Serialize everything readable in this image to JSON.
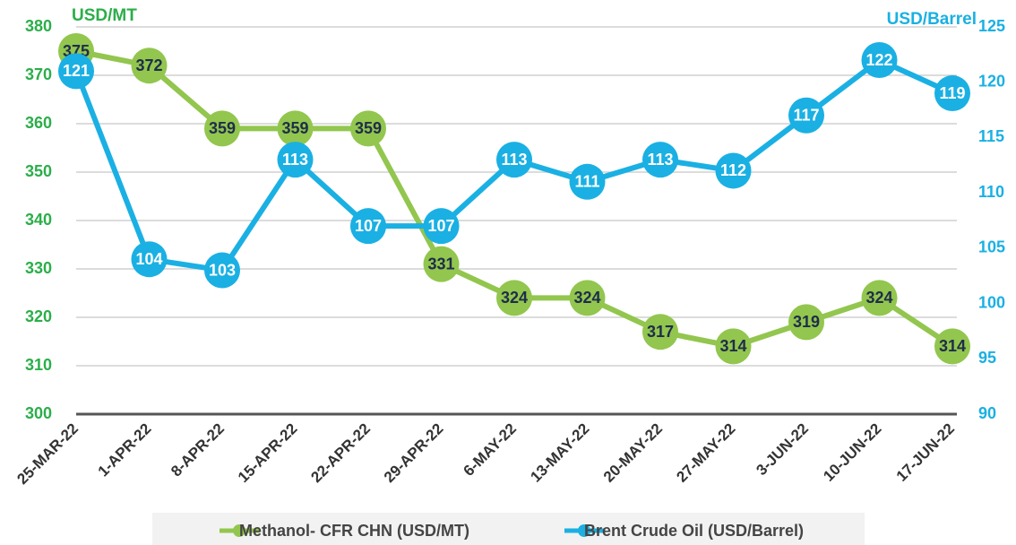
{
  "chart_data": {
    "type": "line",
    "y_label": "USD/MT",
    "y2_label": "USD/Barrel",
    "categories": [
      "25-MAR-22",
      "1-APR-22",
      "8-APR-22",
      "15-APR-22",
      "22-APR-22",
      "29-APR-22",
      "6-MAY-22",
      "13-MAY-22",
      "20-MAY-22",
      "27-MAY-22",
      "3-JUN-22",
      "10-JUN-22",
      "17-JUN-22"
    ],
    "series": [
      {
        "name": "Methanol- CFR CHN (USD/MT)",
        "color": "#92c64e",
        "axis": "y",
        "values": [
          375,
          372,
          359,
          359,
          359,
          331,
          324,
          324,
          317,
          314,
          319,
          324,
          314
        ]
      },
      {
        "name": "Brent Crude Oil (USD/Barrel)",
        "color": "#1ab0e3",
        "axis": "y2",
        "values": [
          121,
          104,
          103,
          113,
          107,
          107,
          113,
          111,
          113,
          112,
          117,
          122,
          119
        ]
      }
    ],
    "ylim": [
      300,
      380
    ],
    "yticks": [
      300,
      310,
      320,
      330,
      340,
      350,
      360,
      370,
      380
    ],
    "y2lim": [
      90,
      125
    ],
    "y2ticks": [
      90,
      95,
      100,
      105,
      110,
      115,
      120,
      125
    ],
    "grid": true,
    "legend": "bottom"
  }
}
